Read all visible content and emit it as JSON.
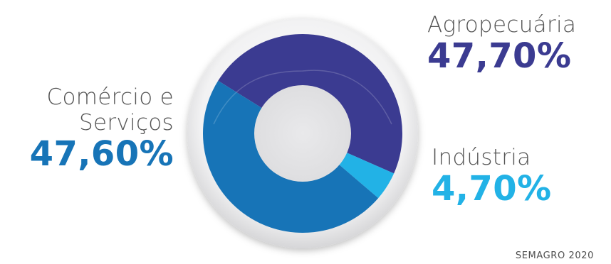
{
  "chart_data": {
    "type": "pie",
    "title": "",
    "categories": [
      "Agropecuária",
      "Indústria",
      "Comércio e Serviços"
    ],
    "values": [
      47.7,
      4.7,
      47.6
    ],
    "value_labels": [
      "47,70%",
      "4,70%",
      "47,60%"
    ],
    "colors": [
      "#3b3b91",
      "#22b2e6",
      "#1774b7"
    ],
    "style": "donut",
    "legend": "none"
  },
  "labels": {
    "agro": {
      "name": "Agropecuária",
      "value": "47,70%"
    },
    "comercio": {
      "name_line1": "Comércio e",
      "name_line2": "Serviços",
      "value": "47,60%"
    },
    "industria": {
      "name": "Indústria",
      "value": "4,70%"
    }
  },
  "source": "SEMAGRO 2020"
}
